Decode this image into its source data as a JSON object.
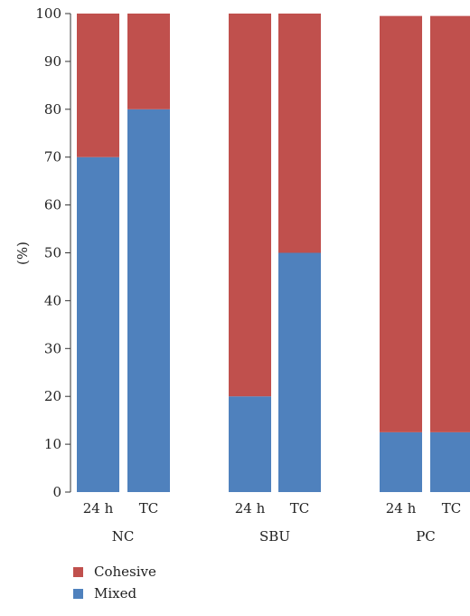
{
  "chart_data": {
    "type": "bar",
    "stacked": true,
    "ylabel": "(%)",
    "ylim": [
      0,
      100
    ],
    "yticks": [
      0,
      10,
      20,
      30,
      40,
      50,
      60,
      70,
      80,
      90,
      100
    ],
    "grid": false,
    "legend_position": "bottom-left",
    "groups": [
      {
        "name": "NC",
        "categories": [
          "24 h",
          "TC"
        ]
      },
      {
        "name": "SBU",
        "categories": [
          "24 h",
          "TC"
        ]
      },
      {
        "name": "PC",
        "categories": [
          "24 h",
          "TC"
        ]
      }
    ],
    "series": [
      {
        "name": "Mixed",
        "color": "#4f81bd",
        "values": [
          70,
          80,
          20,
          50,
          12.5,
          12.5
        ]
      },
      {
        "name": "Cohesive",
        "color": "#c0504d",
        "values": [
          30,
          20,
          80,
          50,
          87,
          87
        ]
      }
    ],
    "legend": [
      {
        "name": "Cohesive",
        "color": "#c0504d"
      },
      {
        "name": "Mixed",
        "color": "#4f81bd"
      }
    ]
  }
}
